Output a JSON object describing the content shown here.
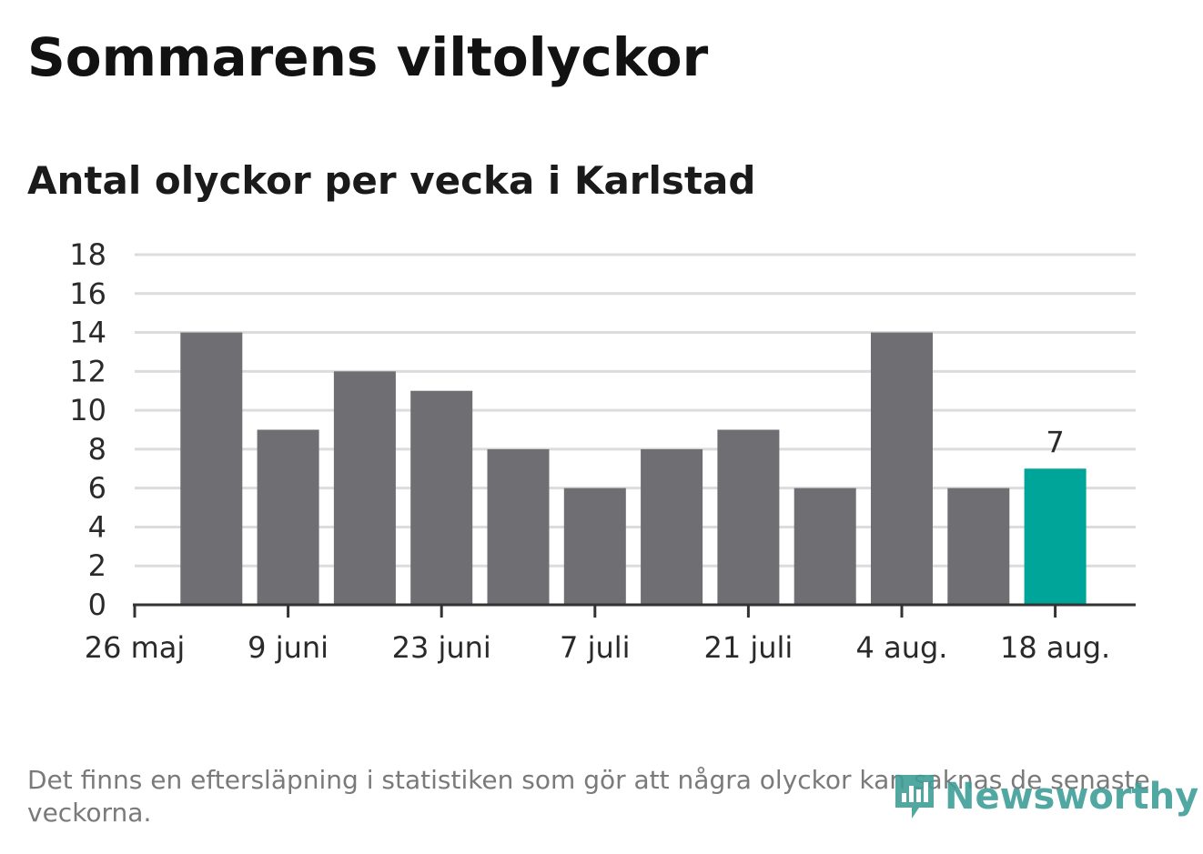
{
  "title": "Sommarens viltolyckor",
  "subtitle": "Antal olyckor per vecka i Karlstad",
  "footnote": "Det finns en eftersläpning i statistiken som gör att några olyckor kan saknas de senaste veckorna.",
  "brand": {
    "name": "Newsworthy",
    "icon": "newsworthy-logo-icon",
    "color": "#3f9e97"
  },
  "colors": {
    "bar": "#6e6e73",
    "highlight": "#00a59a",
    "grid": "#dcdcdc",
    "axis": "#333333"
  },
  "chart_data": {
    "type": "bar",
    "title": "Sommarens viltolyckor",
    "subtitle": "Antal olyckor per vecka i Karlstad",
    "xlabel": "",
    "ylabel": "",
    "x": [
      "2024-05-26",
      "2024-06-02",
      "2024-06-09",
      "2024-06-16",
      "2024-06-23",
      "2024-06-30",
      "2024-07-07",
      "2024-07-14",
      "2024-07-21",
      "2024-07-28",
      "2024-08-04",
      "2024-08-11",
      "2024-08-18"
    ],
    "values": [
      0,
      14,
      9,
      12,
      11,
      8,
      6,
      8,
      9,
      6,
      14,
      6,
      7
    ],
    "highlight_index": 12,
    "highlight_label": "7",
    "ylim": [
      0,
      18
    ],
    "yticks": [
      0,
      2,
      4,
      6,
      8,
      10,
      12,
      14,
      16,
      18
    ],
    "xtick_labels": [
      {
        "x": "2024-05-26",
        "label": "26 maj"
      },
      {
        "x": "2024-06-09",
        "label": "9 juni"
      },
      {
        "x": "2024-06-23",
        "label": "23 juni"
      },
      {
        "x": "2024-07-07",
        "label": "7 juli"
      },
      {
        "x": "2024-07-21",
        "label": "21 juli"
      },
      {
        "x": "2024-08-04",
        "label": "4 aug."
      },
      {
        "x": "2024-08-18",
        "label": "18 aug."
      }
    ],
    "grid": true,
    "legend": "none"
  }
}
